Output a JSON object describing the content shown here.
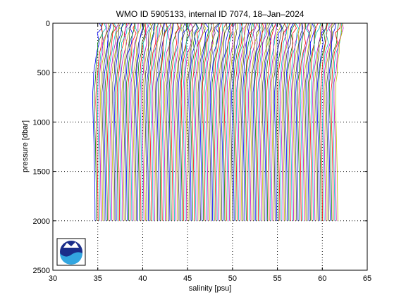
{
  "chart_data": {
    "type": "line",
    "title": "WMO ID 5905133, internal ID 7074, 18–Jan–2024",
    "xlabel": "salinity [psu]",
    "ylabel": "pressure [dbar]",
    "xlim": [
      30,
      65
    ],
    "ylim": [
      0,
      2500
    ],
    "y_reversed": true,
    "xticks": [
      30,
      35,
      40,
      45,
      50,
      55,
      60,
      65
    ],
    "yticks": [
      0,
      500,
      1000,
      1500,
      2000,
      2500
    ],
    "grid": "dotted",
    "profile_count": 160,
    "profile_offset_psu": 0.17,
    "profile_base_salinity": 34.8,
    "profile_max_pressure": 2000,
    "series_colors": [
      "#0000ff",
      "#008000",
      "#ff0000",
      "#00bfbf",
      "#bf00bf",
      "#bfbf00",
      "#404040"
    ],
    "base_profile": {
      "pressure": [
        0,
        50,
        100,
        200,
        300,
        400,
        500,
        600,
        700,
        800,
        1000,
        1200,
        1500,
        1800,
        2000
      ],
      "salinity": [
        35.3,
        35.25,
        35.15,
        35.0,
        34.85,
        34.7,
        34.6,
        34.5,
        34.45,
        34.44,
        34.5,
        34.56,
        34.63,
        34.68,
        34.7
      ]
    },
    "logo": "noaa-logo"
  }
}
